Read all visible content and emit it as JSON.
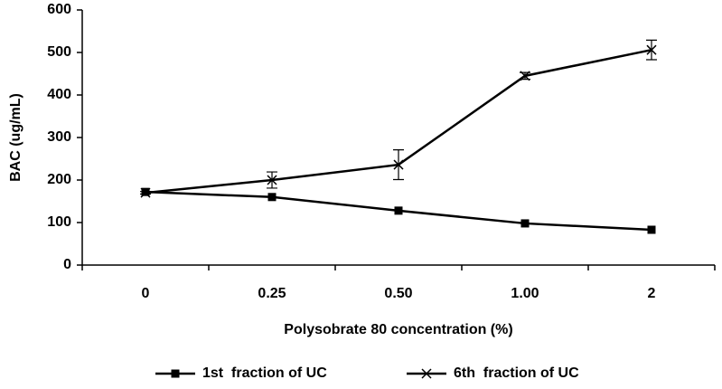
{
  "chart_data": {
    "type": "line",
    "x_label": "Polysobrate 80 concentration (%)",
    "y_label": "BAC (ug/mL)",
    "categories": [
      "0",
      "0.25",
      "0.50",
      "1.00",
      "2"
    ],
    "series": [
      {
        "name": "1st  fraction of UC",
        "color": "#000000",
        "marker": "square",
        "values": [
          172,
          160,
          128,
          98,
          83
        ]
      },
      {
        "name": "6th  fraction of UC",
        "color": "#000000",
        "marker": "x",
        "values": [
          170,
          200,
          236,
          445,
          506
        ],
        "errors": [
          3,
          19,
          35,
          8,
          23
        ]
      }
    ],
    "ylim": [
      0,
      600
    ],
    "yticks": [
      0,
      100,
      200,
      300,
      400,
      500,
      600
    ],
    "grid": false,
    "legend": "bottom"
  }
}
